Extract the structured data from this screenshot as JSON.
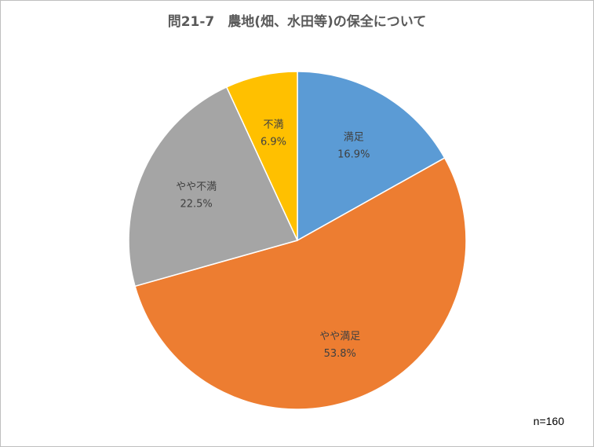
{
  "chart_data": {
    "type": "pie",
    "title": "問21-7　農地(畑、水田等)の保全について",
    "start_angle_deg": 0,
    "direction": "clockwise",
    "slices": [
      {
        "label": "満足",
        "value": 16.9,
        "value_label": "16.9%",
        "color": "#5B9BD5"
      },
      {
        "label": "やや満足",
        "value": 53.8,
        "value_label": "53.8%",
        "color": "#ED7D31"
      },
      {
        "label": "やや不満",
        "value": 22.5,
        "value_label": "22.5%",
        "color": "#A5A5A5"
      },
      {
        "label": "不満",
        "value": 6.9,
        "value_label": "6.9%",
        "color": "#FFC000"
      }
    ]
  },
  "note": "n=160"
}
